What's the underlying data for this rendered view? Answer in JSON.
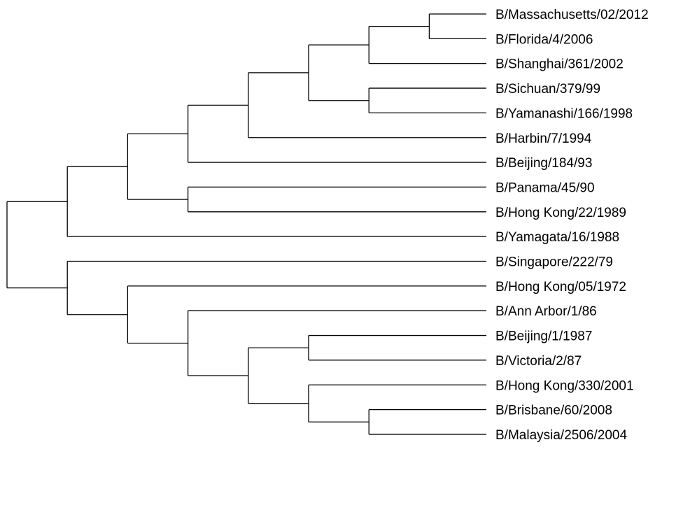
{
  "taxa": [
    "B/Massachusetts/02/2012",
    "B/Florida/4/2006",
    "B/Shanghai/361/2002",
    "B/Sichuan/379/99",
    "B/Yamanashi/166/1998",
    "B/Harbin/7/1994",
    "B/Beijing/184/93",
    "B/Panama/45/90",
    "B/Hong Kong/22/1989",
    "B/Yamagata/16/1988",
    "B/Singapore/222/79",
    "B/Hong Kong/05/1972",
    "B/Ann Arbor/1/86",
    "B/Beijing/1/1987",
    "B/Victoria/2/87",
    "B/Hong Kong/330/2001",
    "B/Brisbane/60/2008",
    "B/Malaysia/2506/2004"
  ],
  "tree": {
    "children": [
      {
        "children": [
          {
            "children": [
              {
                "children": [
                  {
                    "children": [
                      {
                        "children": [
                          {
                            "children": [
                              {
                                "leaf": 0
                              },
                              {
                                "leaf": 1
                              }
                            ]
                          },
                          {
                            "leaf": 2
                          }
                        ]
                      },
                      {
                        "children": [
                          {
                            "leaf": 3
                          },
                          {
                            "leaf": 4
                          }
                        ]
                      }
                    ]
                  },
                  {
                    "leaf": 5
                  }
                ]
              },
              {
                "leaf": 6
              }
            ]
          },
          {
            "children": [
              {
                "leaf": 7
              },
              {
                "leaf": 8
              }
            ]
          }
        ]
      },
      {
        "leaf": 9
      }
    ]
  },
  "tree2": {
    "children": [
      {
        "leaf": 10
      },
      {
        "children": [
          {
            "leaf": 11
          },
          {
            "children": [
              {
                "leaf": 12
              },
              {
                "children": [
                  {
                    "children": [
                      {
                        "leaf": 13
                      },
                      {
                        "leaf": 14
                      }
                    ]
                  },
                  {
                    "children": [
                      {
                        "leaf": 15
                      },
                      {
                        "children": [
                          {
                            "leaf": 16
                          },
                          {
                            "leaf": 17
                          }
                        ]
                      }
                    ]
                  }
                ]
              }
            ]
          }
        ]
      }
    ]
  }
}
